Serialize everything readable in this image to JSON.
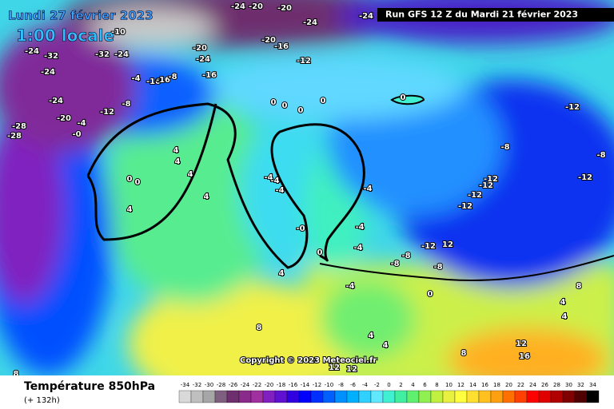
{
  "map": {
    "date": "Lundi 27 février 2023",
    "time": "1:00 locale",
    "run": "Run GFS 12 Z du Mardi 21 février 2023",
    "copyright": "Copyright © 2023 Meteociel.fr",
    "variable": "Température 850hPa",
    "lead": "(+ 132h)",
    "labels": [
      "-24",
      "-20",
      "-20",
      "-24",
      "-24",
      "-10",
      "-24",
      "-32",
      "-32",
      "-24",
      "-20",
      "-20",
      "-16",
      "-24",
      "-12",
      "-24",
      "-16",
      "-4",
      "-16",
      "-16",
      "-8",
      "-24",
      "-8",
      "-12",
      "0",
      "0",
      "0",
      "0",
      "0",
      "-20",
      "-4",
      "-28",
      "-28",
      "-0",
      "-12",
      "-8",
      "-8",
      "4",
      "4",
      "4",
      "4",
      "0",
      "0",
      "4",
      "-4",
      "-4",
      "-4",
      "-4",
      "-12",
      "-12",
      "-12",
      "-12",
      "-12",
      "-0",
      "0",
      "-4",
      "-4",
      "-12",
      "12",
      "4",
      "-4",
      "-8",
      "-8",
      "-8",
      "0",
      "8",
      "4",
      "4",
      "8",
      "12",
      "16",
      "4",
      "8",
      "4",
      "12",
      "12",
      "8"
    ],
    "legend": {
      "ticks": [
        -34,
        -32,
        -30,
        -28,
        -26,
        -24,
        -22,
        -20,
        -18,
        -16,
        -14,
        -12,
        -10,
        -8,
        -6,
        -4,
        -2,
        0,
        2,
        4,
        6,
        8,
        10,
        12,
        14,
        16,
        18,
        20,
        22,
        24,
        26,
        28,
        30,
        32,
        34
      ],
      "colors": [
        "#d9d9d9",
        "#bfbfbf",
        "#a6a6a6",
        "#7f5f7f",
        "#6e2f6e",
        "#8a2a8a",
        "#a030a0",
        "#8020c0",
        "#6010d0",
        "#3000e0",
        "#0000ff",
        "#0030ff",
        "#0060ff",
        "#0090ff",
        "#00b0ff",
        "#30d0ff",
        "#60e8ff",
        "#40f0d0",
        "#40f0a0",
        "#60f070",
        "#90f050",
        "#c0f040",
        "#e8f040",
        "#ffff40",
        "#ffe030",
        "#ffc020",
        "#ffa010",
        "#ff7000",
        "#ff4000",
        "#ff0000",
        "#e00000",
        "#b00000",
        "#800000",
        "#500000",
        "#000000"
      ]
    }
  }
}
